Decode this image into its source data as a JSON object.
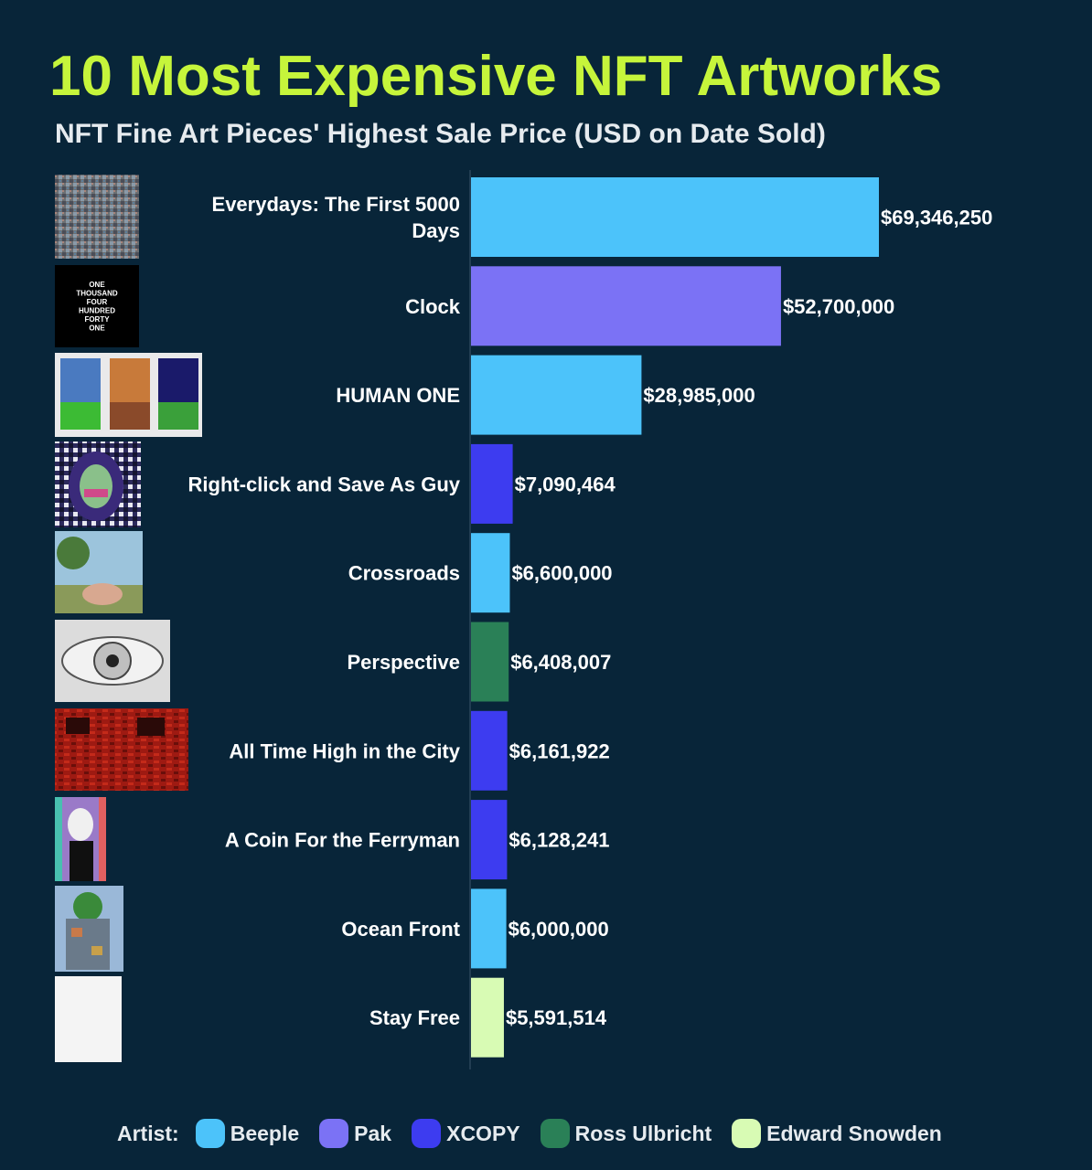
{
  "header": {
    "title": "10 Most Expensive NFT Artworks",
    "subtitle": "NFT Fine Art Pieces' Highest Sale Price (USD on Date Sold)"
  },
  "legend": {
    "title": "Artist:",
    "items": [
      {
        "label": "Beeple",
        "color": "#4cc3fa"
      },
      {
        "label": "Pak",
        "color": "#7b72f5"
      },
      {
        "label": "XCOPY",
        "color": "#3d3cf0"
      },
      {
        "label": "Ross Ulbricht",
        "color": "#2a8057"
      },
      {
        "label": "Edward Snowden",
        "color": "#d8fbb4"
      }
    ]
  },
  "thumbnails": {
    "clock_text": [
      "ONE",
      "THOUSAND",
      "FOUR",
      "HUNDRED",
      "FORTY",
      "ONE"
    ]
  },
  "chart_data": {
    "type": "bar",
    "orientation": "horizontal",
    "title": "10 Most Expensive NFT Artworks",
    "subtitle": "NFT Fine Art Pieces' Highest Sale Price (USD on Date Sold)",
    "categories": [
      "Everydays: The First 5000 Days",
      "Clock",
      "HUMAN ONE",
      "Right-click and Save As Guy",
      "Crossroads",
      "Perspective",
      "All Time High in the City",
      "A Coin For the Ferryman",
      "Ocean Front",
      "Stay Free"
    ],
    "values": [
      69346250,
      52700000,
      28985000,
      7090464,
      6600000,
      6408007,
      6161922,
      6128241,
      6000000,
      5591514
    ],
    "value_labels": [
      "$69,346,250",
      "$52,700,000",
      "$28,985,000",
      "$7,090,464",
      "$6,600,000",
      "$6,408,007",
      "$6,161,922",
      "$6,128,241",
      "$6,000,000",
      "$5,591,514"
    ],
    "artists": [
      "Beeple",
      "Pak",
      "Beeple",
      "XCOPY",
      "Beeple",
      "Ross Ulbricht",
      "XCOPY",
      "XCOPY",
      "Beeple",
      "Edward Snowden"
    ],
    "xlim": [
      0,
      69346250
    ],
    "grid": false,
    "legend_position": "bottom"
  }
}
